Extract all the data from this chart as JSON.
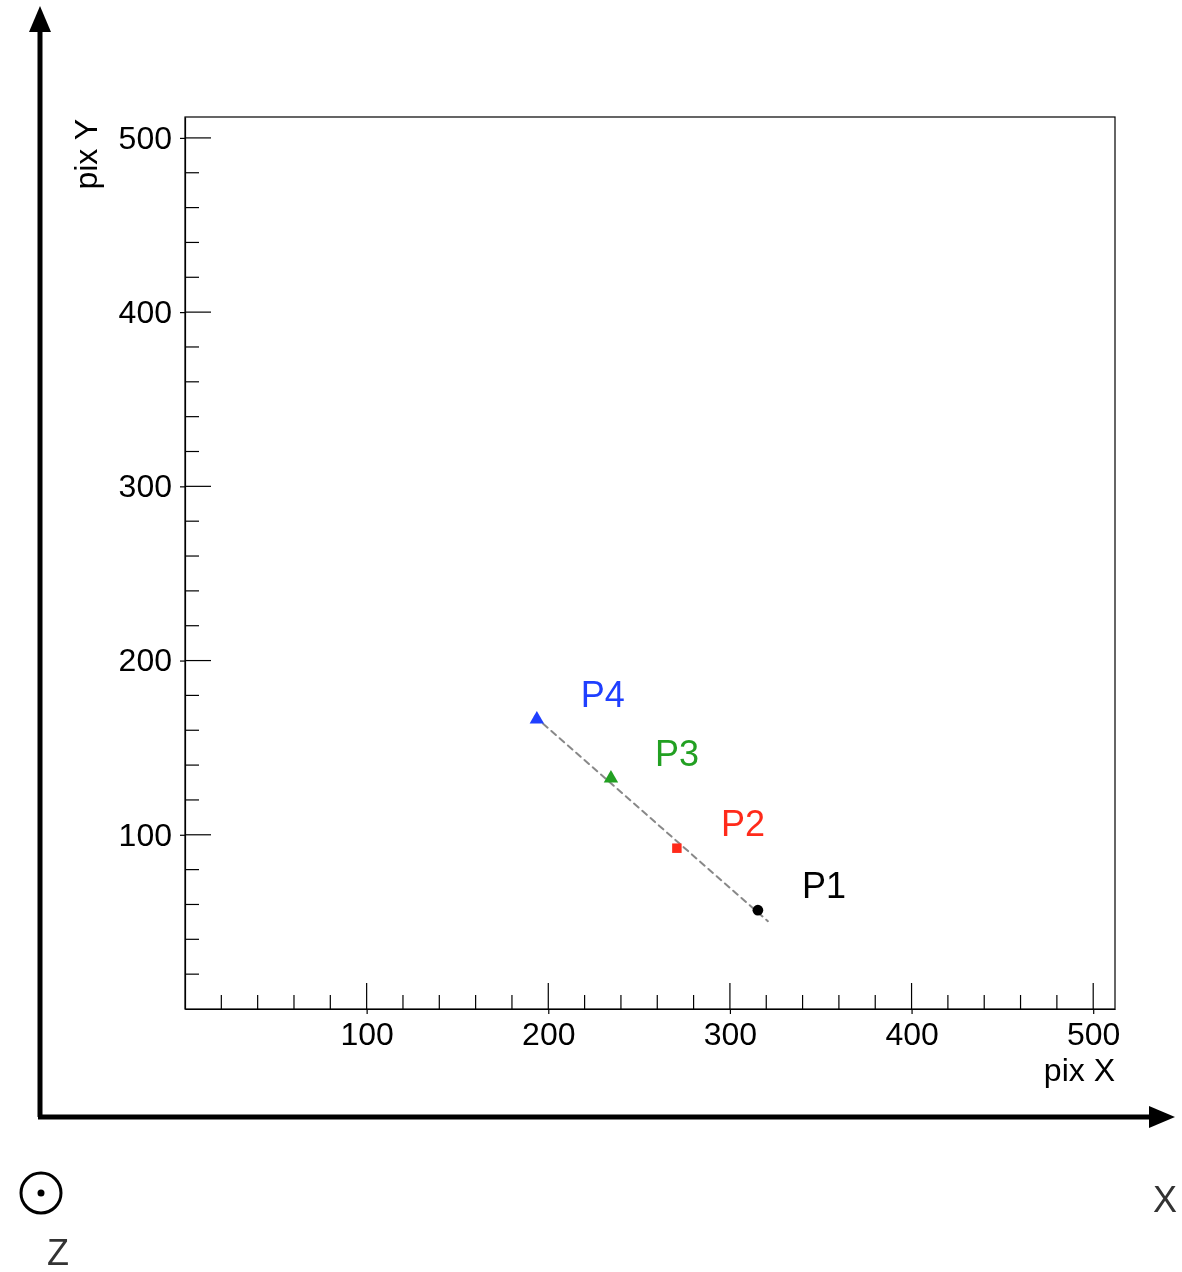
{
  "chart_data": {
    "type": "scatter",
    "xlabel": "pix X",
    "ylabel": "pix Y",
    "xlim": [
      0,
      512
    ],
    "ylim": [
      0,
      512
    ],
    "xticks": [
      100,
      200,
      300,
      400,
      500
    ],
    "yticks": [
      100,
      200,
      300,
      400,
      500
    ],
    "grid": false,
    "legend": false,
    "series": [
      {
        "type": "line",
        "color": "#888888",
        "line_style": "dashed",
        "marker": "none",
        "x": [
          192.6,
          320.9
        ],
        "values": [
          167.9,
          50.4
        ]
      },
      {
        "name": "P1",
        "color": "#000000",
        "marker": "circle",
        "x": [
          315.4
        ],
        "values": [
          56.7
        ]
      },
      {
        "name": "P2",
        "color": "#ff2a1a",
        "marker": "square",
        "x": [
          270.8
        ],
        "values": [
          92.3
        ]
      },
      {
        "name": "P3",
        "color": "#22a022",
        "marker": "triangle",
        "x": [
          234.5
        ],
        "values": [
          132.4
        ]
      },
      {
        "name": "P4",
        "color": "#1f3fff",
        "marker": "triangle",
        "x": [
          193.7
        ],
        "values": [
          166.2
        ]
      }
    ],
    "annotations": [
      "X",
      "Z"
    ]
  }
}
